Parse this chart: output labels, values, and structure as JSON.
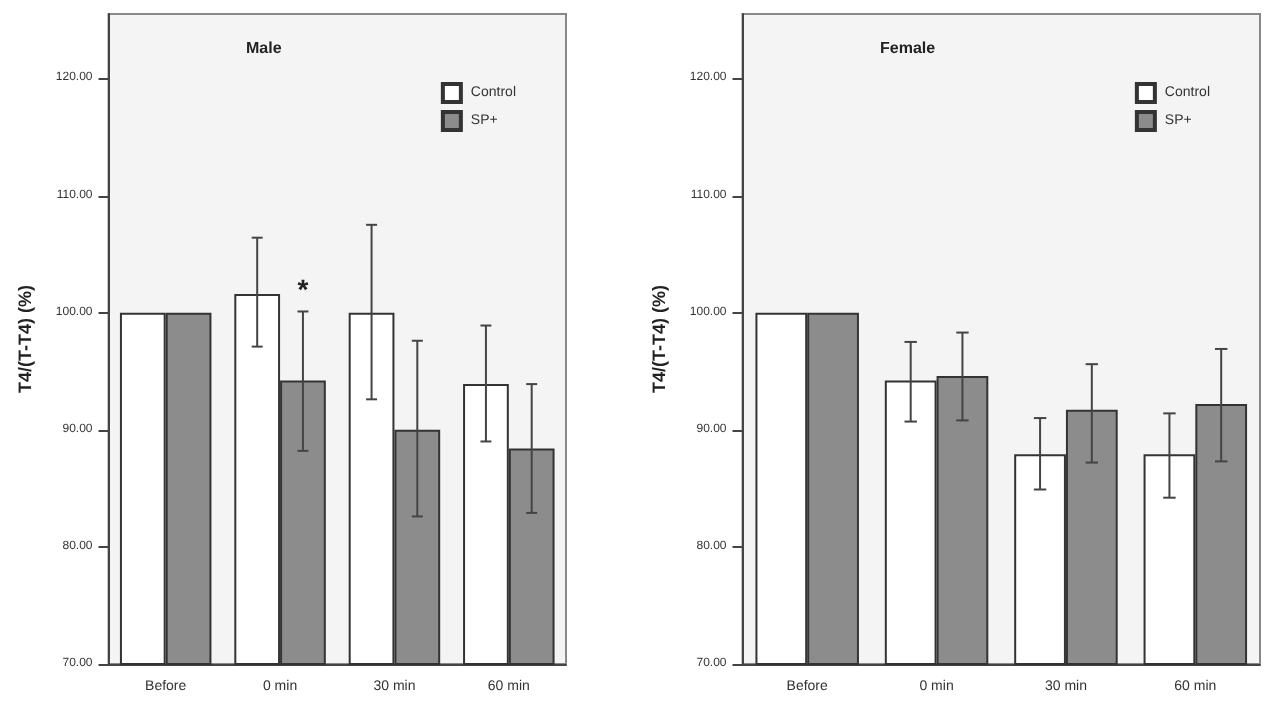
{
  "chart_data": [
    {
      "type": "bar",
      "title": "Male",
      "ylabel": "T4/(T-T4) (%)",
      "categories": [
        "Before",
        "0 min",
        "30 min",
        "60 min"
      ],
      "series": [
        {
          "name": "Control",
          "color": "#ffffff",
          "values": [
            100,
            101.6,
            100,
            93.9
          ],
          "errors": [
            null,
            [
              97.1,
              106.4
            ],
            [
              92.6,
              107.5
            ],
            [
              89.0,
              98.9
            ]
          ]
        },
        {
          "name": "SP+",
          "color": "#8c8c8c",
          "values": [
            100,
            94.2,
            90.0,
            88.4
          ],
          "errors": [
            null,
            [
              88.2,
              100.1
            ],
            [
              82.6,
              97.6
            ],
            [
              82.9,
              93.9
            ]
          ]
        }
      ],
      "annotations": [
        {
          "text": "*",
          "x": "0 min",
          "y": 100.1
        }
      ],
      "ylim": [
        70,
        125.5
      ],
      "yticks": [
        {
          "value": 70,
          "label": "70.00"
        },
        {
          "value": 80,
          "label": "80.00"
        },
        {
          "value": 90,
          "label": "90.00"
        },
        {
          "value": 100,
          "label": "100.00"
        },
        {
          "value": 110,
          "label": "110.00"
        },
        {
          "value": 120,
          "label": "120.00"
        }
      ],
      "legend": "top right",
      "grid": false
    },
    {
      "type": "bar",
      "title": "Female",
      "ylabel": "T4/(T-T4) (%)",
      "categories": [
        "Before",
        "0 min",
        "30 min",
        "60 min"
      ],
      "series": [
        {
          "name": "Control",
          "color": "#ffffff",
          "values": [
            100,
            94.2,
            87.9,
            87.9
          ],
          "errors": [
            null,
            [
              90.7,
              97.5
            ],
            [
              84.9,
              91.0
            ],
            [
              84.2,
              91.4
            ]
          ]
        },
        {
          "name": "SP+",
          "color": "#8c8c8c",
          "values": [
            100,
            94.6,
            91.7,
            92.2
          ],
          "errors": [
            null,
            [
              90.8,
              98.3
            ],
            [
              87.2,
              95.6
            ],
            [
              87.3,
              96.9
            ]
          ]
        }
      ],
      "ylim": [
        70,
        125.5
      ],
      "yticks": [
        {
          "value": 70,
          "label": "70.00"
        },
        {
          "value": 80,
          "label": "80.00"
        },
        {
          "value": 90,
          "label": "90.00"
        },
        {
          "value": 100,
          "label": "100.00"
        },
        {
          "value": 110,
          "label": "110.00"
        },
        {
          "value": 120,
          "label": "120.00"
        }
      ],
      "legend": "top right",
      "grid": false
    }
  ]
}
